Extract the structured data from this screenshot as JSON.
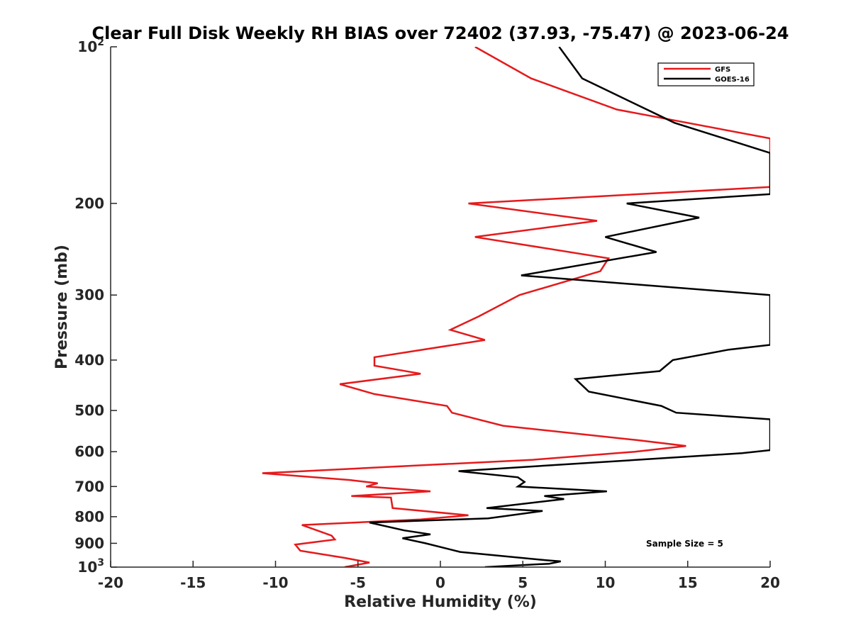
{
  "chart_data": {
    "type": "line",
    "title": "Clear Full Disk Weekly RH BIAS over 72402 (37.93, -75.47) @ 2023-06-24",
    "xlabel": "Relative Humidity (%)",
    "ylabel": "Pressure (mb)",
    "xlim": [
      -20,
      20
    ],
    "ylim": [
      100,
      1000
    ],
    "yscale": "log",
    "yreversed": true,
    "xticks": [
      -20,
      -15,
      -10,
      -5,
      0,
      5,
      10,
      15,
      20
    ],
    "xtick_labels": [
      "-20",
      "-15",
      "-10",
      "-5",
      "0",
      "5",
      "10",
      "15",
      "20"
    ],
    "yticks": [
      100,
      200,
      300,
      400,
      500,
      600,
      700,
      800,
      900,
      1000
    ],
    "ytick_labels": [
      {
        "base": "10",
        "exp": "2"
      },
      {
        "text": "200"
      },
      {
        "text": "300"
      },
      {
        "text": "400"
      },
      {
        "text": "500"
      },
      {
        "text": "600"
      },
      {
        "text": "700"
      },
      {
        "text": "800"
      },
      {
        "text": "900"
      },
      {
        "base": "10",
        "exp": "3"
      }
    ],
    "legend_position": "top-right",
    "annotation": "Sample Size = 5",
    "series": [
      {
        "name": "GFS",
        "color": "#e41a1c",
        "points": [
          [
            2.1,
            100
          ],
          [
            5.5,
            115
          ],
          [
            10.7,
            132
          ],
          [
            20,
            150
          ],
          [
            20,
            186
          ],
          [
            1.7,
            200
          ],
          [
            9.5,
            216
          ],
          [
            2.1,
            232
          ],
          [
            10.2,
            255
          ],
          [
            9.7,
            270
          ],
          [
            4.8,
            300
          ],
          [
            2.3,
            330
          ],
          [
            0.6,
            350
          ],
          [
            2.7,
            366
          ],
          [
            -4,
            395
          ],
          [
            -4,
            410
          ],
          [
            -1.2,
            425
          ],
          [
            -6.1,
            445
          ],
          [
            -4,
            465
          ],
          [
            0.4,
            490
          ],
          [
            0.7,
            505
          ],
          [
            3.8,
            535
          ],
          [
            11.9,
            570
          ],
          [
            14.9,
            585
          ],
          [
            11.8,
            600
          ],
          [
            5.6,
            622
          ],
          [
            -10.8,
            660
          ],
          [
            -5.5,
            680
          ],
          [
            -3.8,
            690
          ],
          [
            -4.5,
            700
          ],
          [
            -0.6,
            715
          ],
          [
            -5.4,
            730
          ],
          [
            -3,
            735
          ],
          [
            -2.9,
            770
          ],
          [
            1.7,
            795
          ],
          [
            -1.2,
            810
          ],
          [
            -8.4,
            830
          ],
          [
            -6.6,
            870
          ],
          [
            -6.4,
            885
          ],
          [
            -8.8,
            905
          ],
          [
            -8.5,
            930
          ],
          [
            -5.8,
            960
          ],
          [
            -4.3,
            980
          ],
          [
            -5.8,
            1000
          ]
        ]
      },
      {
        "name": "GOES-16",
        "color": "#000000",
        "points": [
          [
            7.2,
            100
          ],
          [
            8.6,
            115
          ],
          [
            14.2,
            140
          ],
          [
            20,
            160
          ],
          [
            20,
            192
          ],
          [
            11.3,
            200
          ],
          [
            15.7,
            213
          ],
          [
            10,
            232
          ],
          [
            13.1,
            248
          ],
          [
            4.9,
            275
          ],
          [
            20,
            300
          ],
          [
            20,
            374
          ],
          [
            17.5,
            382
          ],
          [
            14.1,
            400
          ],
          [
            13.3,
            420
          ],
          [
            8.2,
            435
          ],
          [
            9,
            460
          ],
          [
            13.4,
            490
          ],
          [
            14.3,
            505
          ],
          [
            20,
            520
          ],
          [
            20,
            596
          ],
          [
            18.3,
            604
          ],
          [
            1.1,
            654
          ],
          [
            4.7,
            672
          ],
          [
            5.1,
            686
          ],
          [
            4.7,
            700
          ],
          [
            10.1,
            715
          ],
          [
            6.3,
            730
          ],
          [
            7.5,
            740
          ],
          [
            2.8,
            770
          ],
          [
            6.2,
            780
          ],
          [
            2.9,
            806
          ],
          [
            -4.3,
            821
          ],
          [
            -2.2,
            850
          ],
          [
            -0.6,
            865
          ],
          [
            -2.3,
            880
          ],
          [
            -0.9,
            900
          ],
          [
            1.2,
            935
          ],
          [
            6.4,
            970
          ],
          [
            7.3,
            975
          ],
          [
            6.6,
            985
          ],
          [
            2.7,
            1000
          ]
        ]
      }
    ]
  }
}
